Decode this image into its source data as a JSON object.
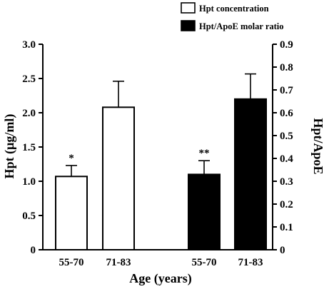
{
  "chart_data": {
    "type": "bar",
    "xlabel": "Age (years)",
    "ylabel_left": "Hpt (µg/ml)",
    "ylabel_right": "Hpt/ApoE",
    "ylim_left": [
      0,
      3.0
    ],
    "ylim_right": [
      0,
      0.9
    ],
    "yticks_left": [
      "0",
      "0.5",
      "1.0",
      "1.5",
      "2.0",
      "2.5",
      "3.0"
    ],
    "yticks_right": [
      "0",
      "0.1",
      "0.2",
      "0.3",
      "0.4",
      "0.5",
      "0.6",
      "0.7",
      "0.8",
      "0.9"
    ],
    "legend_position": "top-right",
    "grid": false,
    "series": [
      {
        "name": "Hpt concentration",
        "axis": "left",
        "color": "#ffffff",
        "categories": [
          "55-70",
          "71-83"
        ],
        "values": [
          1.07,
          2.08
        ],
        "errors": [
          0.16,
          0.38
        ],
        "annotations": [
          "*",
          ""
        ]
      },
      {
        "name": "Hpt/ApoE molar ratio",
        "axis": "right",
        "color": "#000000",
        "categories": [
          "55-70",
          "71-83"
        ],
        "values": [
          0.33,
          0.66
        ],
        "errors": [
          0.06,
          0.11
        ],
        "annotations": [
          "**",
          ""
        ]
      }
    ]
  }
}
